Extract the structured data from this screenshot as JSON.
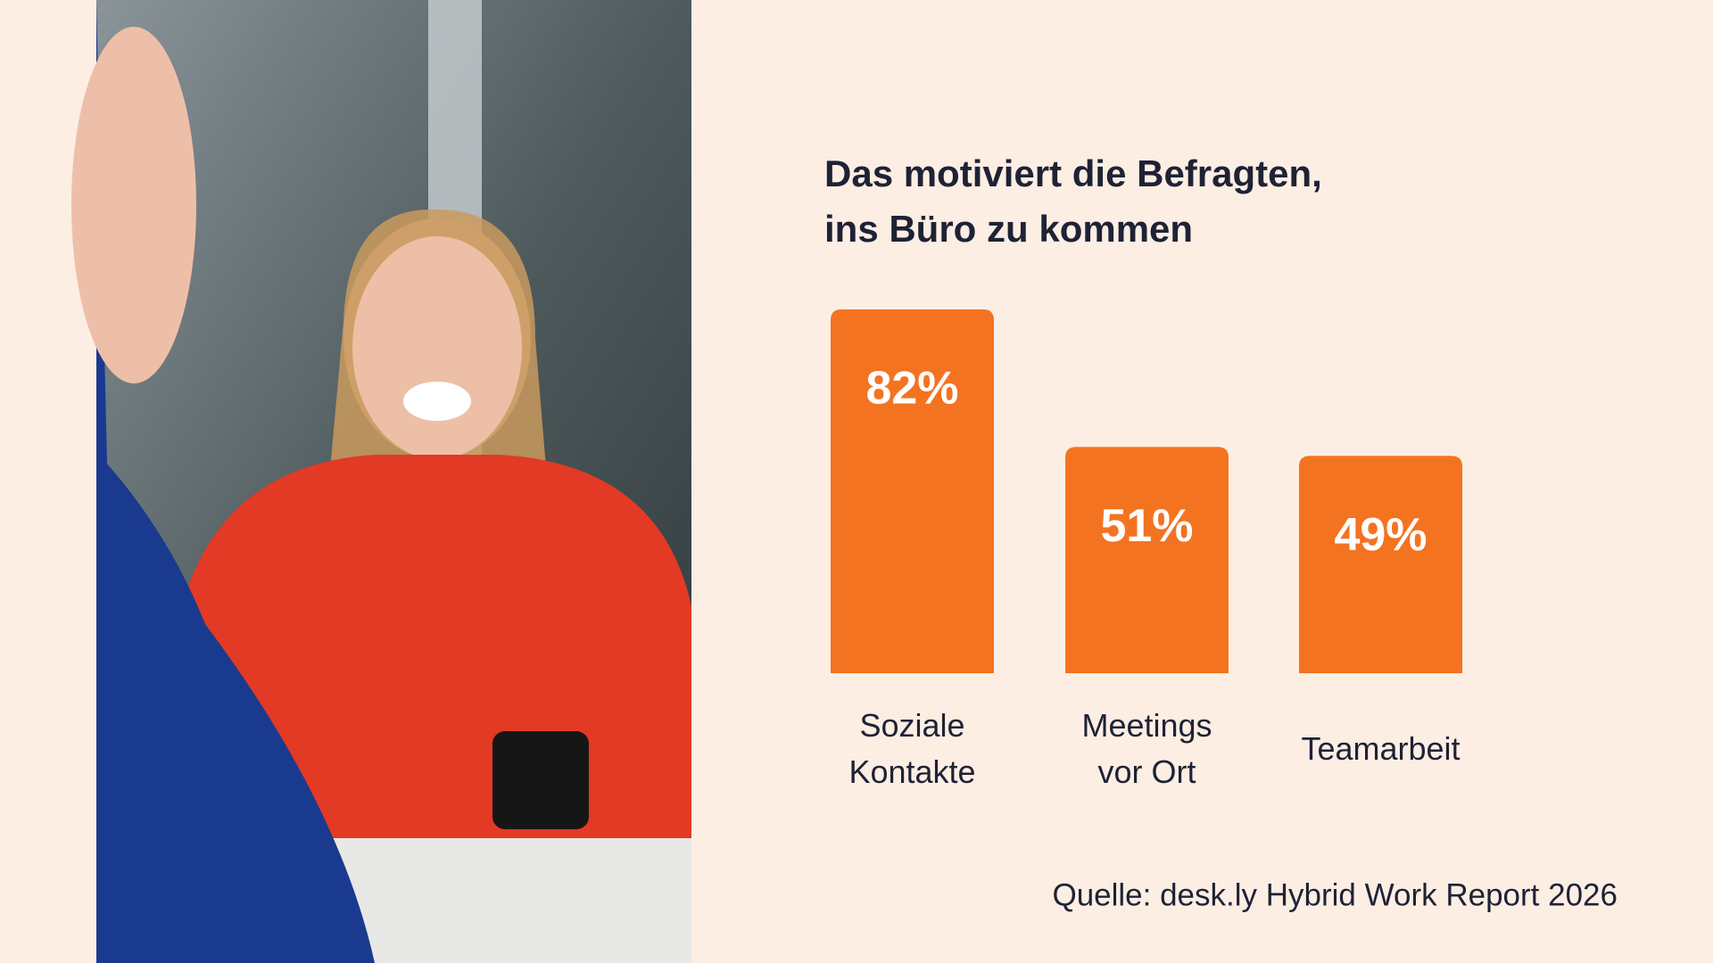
{
  "chart_data": {
    "type": "bar",
    "title": "Das motiviert die Befragten,",
    "subtitle": "ins Büro zu kommen",
    "categories": [
      "Soziale Kontakte",
      "Meetings vor Ort",
      "Teamarbeit"
    ],
    "values": [
      82,
      51,
      49
    ],
    "value_labels": [
      "82%",
      "51%",
      "49%"
    ],
    "color": "#f47321",
    "ylim": [
      0,
      82
    ],
    "source": "Quelle: desk.ly Hybrid Work Report 2026"
  }
}
